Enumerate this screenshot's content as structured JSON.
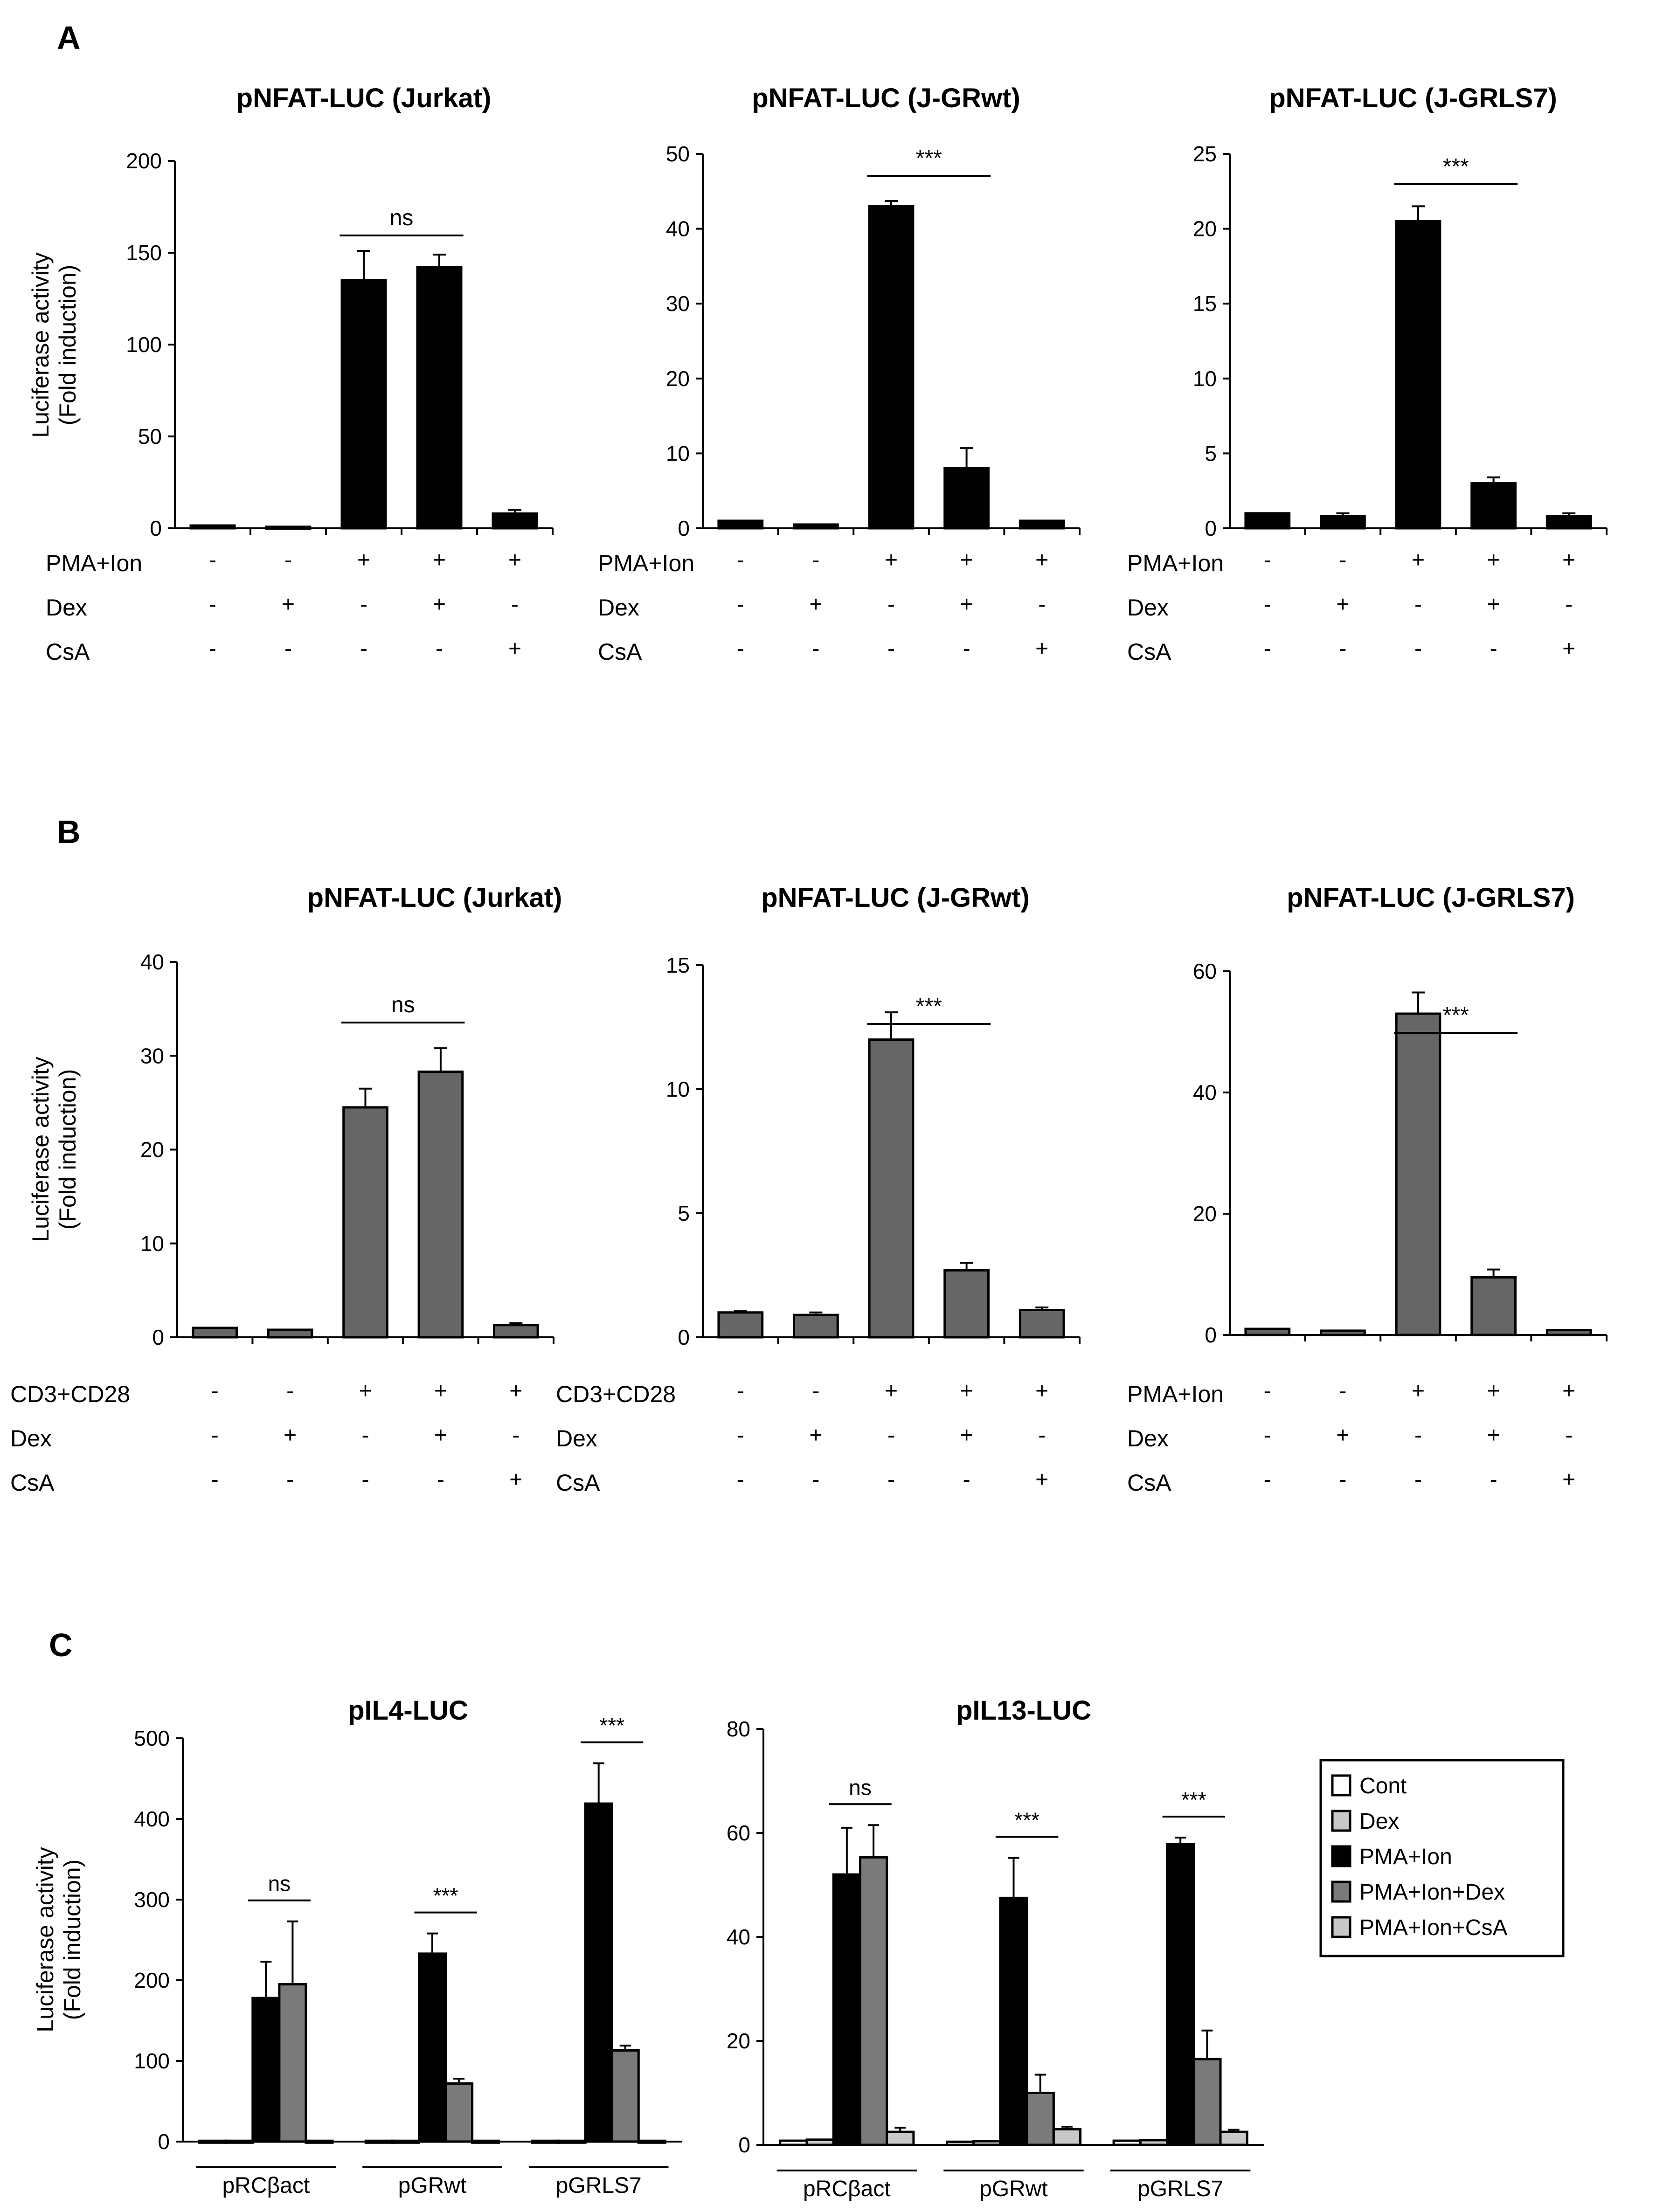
{
  "figure": {
    "panels": [
      {
        "letter": "A"
      },
      {
        "letter": "B"
      },
      {
        "letter": "C"
      }
    ]
  },
  "legend": {
    "entries": [
      {
        "label": "Cont",
        "color": "#ffffff"
      },
      {
        "label": "Dex",
        "color": "#c8c8c8"
      },
      {
        "label": "PMA+Ion",
        "color": "#000000"
      },
      {
        "label": "PMA+Ion+Dex",
        "color": "#7a7a7a"
      },
      {
        "label": "PMA+Ion+CsA",
        "color": "#c8c8c8"
      }
    ]
  },
  "chart_data": [
    {
      "id": "A1",
      "panel": "A",
      "type": "bar",
      "title": "pNFAT-LUC (Jurkat)",
      "ylabel": [
        "Luciferase activity",
        "(Fold induction)"
      ],
      "ylim": [
        0,
        200
      ],
      "yticks": [
        "0",
        "50",
        "100",
        "150",
        "200"
      ],
      "bar_color": "#000000",
      "values": [
        1.5,
        0.8,
        135,
        142,
        8
      ],
      "errors": [
        0,
        0,
        16,
        7,
        2
      ],
      "treatments": [
        {
          "name": "PMA+Ion",
          "signs": [
            "-",
            "-",
            "+",
            "+",
            "+"
          ]
        },
        {
          "name": "Dex",
          "signs": [
            "-",
            "+",
            "-",
            "+",
            "-"
          ]
        },
        {
          "name": "CsA",
          "signs": [
            "-",
            "-",
            "-",
            "-",
            "+"
          ]
        }
      ],
      "significance": {
        "from": 2,
        "to": 3,
        "label": "ns"
      }
    },
    {
      "id": "A2",
      "panel": "A",
      "type": "bar",
      "title": "pNFAT-LUC (J-GRwt)",
      "ylim": [
        0,
        50
      ],
      "yticks": [
        "0",
        "10",
        "20",
        "30",
        "40",
        "50"
      ],
      "bar_color": "#000000",
      "values": [
        1,
        0.5,
        43,
        8,
        1
      ],
      "errors": [
        0,
        0,
        0.7,
        2.7,
        0
      ],
      "treatments": [
        {
          "name": "PMA+Ion",
          "signs": [
            "-",
            "-",
            "+",
            "+",
            "+"
          ]
        },
        {
          "name": "Dex",
          "signs": [
            "-",
            "+",
            "-",
            "+",
            "-"
          ]
        },
        {
          "name": "CsA",
          "signs": [
            "-",
            "-",
            "-",
            "-",
            "+"
          ]
        }
      ],
      "significance": {
        "from": 2,
        "to": 3,
        "label": "***"
      }
    },
    {
      "id": "A3",
      "panel": "A",
      "type": "bar",
      "title": "pNFAT-LUC (J-GRLS7)",
      "ylim": [
        0,
        25
      ],
      "yticks": [
        "0",
        "5",
        "10",
        "15",
        "20",
        "25"
      ],
      "bar_color": "#000000",
      "values": [
        1,
        0.8,
        20.5,
        3,
        0.8
      ],
      "errors": [
        0,
        0.2,
        1,
        0.4,
        0.2
      ],
      "treatments": [
        {
          "name": "PMA+Ion",
          "signs": [
            "-",
            "-",
            "+",
            "+",
            "+"
          ]
        },
        {
          "name": "Dex",
          "signs": [
            "-",
            "+",
            "-",
            "+",
            "-"
          ]
        },
        {
          "name": "CsA",
          "signs": [
            "-",
            "-",
            "-",
            "-",
            "+"
          ]
        }
      ],
      "significance": {
        "from": 2,
        "to": 3,
        "label": "***"
      }
    },
    {
      "id": "B1",
      "panel": "B",
      "type": "bar",
      "title": "pNFAT-LUC (Jurkat)",
      "ylabel": [
        "Luciferase activity",
        "(Fold induction)"
      ],
      "ylim": [
        0,
        40
      ],
      "yticks": [
        "0",
        "10",
        "20",
        "30",
        "40"
      ],
      "bar_color": "#666666",
      "values": [
        1,
        0.8,
        24.5,
        28.3,
        1.3
      ],
      "errors": [
        0,
        0,
        2,
        2.5,
        0.2
      ],
      "treatments": [
        {
          "name": "CD3+CD28",
          "signs": [
            "-",
            "-",
            "+",
            "+",
            "+"
          ]
        },
        {
          "name": "Dex",
          "signs": [
            "-",
            "+",
            "-",
            "+",
            "-"
          ]
        },
        {
          "name": "CsA",
          "signs": [
            "-",
            "-",
            "-",
            "-",
            "+"
          ]
        }
      ],
      "significance": {
        "from": 2,
        "to": 3,
        "label": "ns"
      }
    },
    {
      "id": "B2",
      "panel": "B",
      "type": "bar",
      "title": "pNFAT-LUC (J-GRwt)",
      "ylim": [
        0,
        15
      ],
      "yticks": [
        "0",
        "5",
        "10",
        "15"
      ],
      "bar_color": "#666666",
      "values": [
        1,
        0.9,
        12,
        2.7,
        1.1
      ],
      "errors": [
        0.05,
        0.1,
        1.1,
        0.3,
        0.1
      ],
      "treatments": [
        {
          "name": "CD3+CD28",
          "signs": [
            "-",
            "-",
            "+",
            "+",
            "+"
          ]
        },
        {
          "name": "Dex",
          "signs": [
            "-",
            "+",
            "-",
            "+",
            "-"
          ]
        },
        {
          "name": "CsA",
          "signs": [
            "-",
            "-",
            "-",
            "-",
            "+"
          ]
        }
      ],
      "significance": {
        "from": 2,
        "to": 3,
        "label": "***"
      }
    },
    {
      "id": "B3",
      "panel": "B",
      "type": "bar",
      "title": "pNFAT-LUC (J-GRLS7)",
      "ylim": [
        0,
        60
      ],
      "yticks": [
        "0",
        "20",
        "40",
        "60"
      ],
      "bar_color": "#666666",
      "values": [
        1,
        0.7,
        53,
        9.5,
        0.8
      ],
      "errors": [
        0,
        0,
        3.5,
        1.3,
        0
      ],
      "treatments": [
        {
          "name": "PMA+Ion",
          "signs": [
            "-",
            "-",
            "+",
            "+",
            "+"
          ]
        },
        {
          "name": "Dex",
          "signs": [
            "-",
            "+",
            "-",
            "+",
            "-"
          ]
        },
        {
          "name": "CsA",
          "signs": [
            "-",
            "-",
            "-",
            "-",
            "+"
          ]
        }
      ],
      "significance": {
        "from": 2,
        "to": 3,
        "label": "***"
      }
    },
    {
      "id": "C1",
      "panel": "C",
      "type": "bar",
      "title": "pIL4-LUC",
      "ylabel": [
        "Luciferase activity",
        "(Fold induction)"
      ],
      "ylim": [
        0,
        500
      ],
      "yticks": [
        "0",
        "100",
        "200",
        "300",
        "400",
        "500"
      ],
      "categories": [
        "pRCβact",
        "pGRwt",
        "pGRLS7"
      ],
      "series": [
        {
          "name": "Cont",
          "values": [
            1,
            1,
            1
          ],
          "errors": [
            0,
            0,
            0
          ]
        },
        {
          "name": "Dex",
          "values": [
            1,
            1,
            1
          ],
          "errors": [
            0,
            0,
            0
          ]
        },
        {
          "name": "PMA+Ion",
          "values": [
            178,
            233,
            419
          ],
          "errors": [
            45,
            25,
            50
          ]
        },
        {
          "name": "PMA+Ion+Dex",
          "values": [
            195,
            72,
            113
          ],
          "errors": [
            78,
            6,
            6
          ]
        },
        {
          "name": "PMA+Ion+CsA",
          "values": [
            1,
            1,
            1
          ],
          "errors": [
            0,
            0,
            0
          ]
        }
      ],
      "significance": [
        {
          "group": 0,
          "label": "ns"
        },
        {
          "group": 1,
          "label": "***"
        },
        {
          "group": 2,
          "label": "***"
        }
      ]
    },
    {
      "id": "C2",
      "panel": "C",
      "type": "bar",
      "title": "pIL13-LUC",
      "ylim": [
        0,
        80
      ],
      "yticks": [
        "0",
        "20",
        "40",
        "60",
        "80"
      ],
      "categories": [
        "pRCβact",
        "pGRwt",
        "pGRLS7"
      ],
      "series": [
        {
          "name": "Cont",
          "values": [
            0.8,
            0.6,
            0.8
          ],
          "errors": [
            0,
            0,
            0
          ]
        },
        {
          "name": "Dex",
          "values": [
            1,
            0.7,
            0.9
          ],
          "errors": [
            0,
            0,
            0
          ]
        },
        {
          "name": "PMA+Ion",
          "values": [
            52,
            47.5,
            57.8
          ],
          "errors": [
            9,
            7.7,
            1.3
          ]
        },
        {
          "name": "PMA+Ion+Dex",
          "values": [
            55.3,
            10,
            16.5
          ],
          "errors": [
            6.2,
            3.5,
            5.5
          ]
        },
        {
          "name": "PMA+Ion+CsA",
          "values": [
            2.5,
            3,
            2.5
          ],
          "errors": [
            0.8,
            0.5,
            0.4
          ]
        }
      ],
      "significance": [
        {
          "group": 0,
          "label": "ns"
        },
        {
          "group": 1,
          "label": "***"
        },
        {
          "group": 2,
          "label": "***"
        }
      ]
    }
  ]
}
